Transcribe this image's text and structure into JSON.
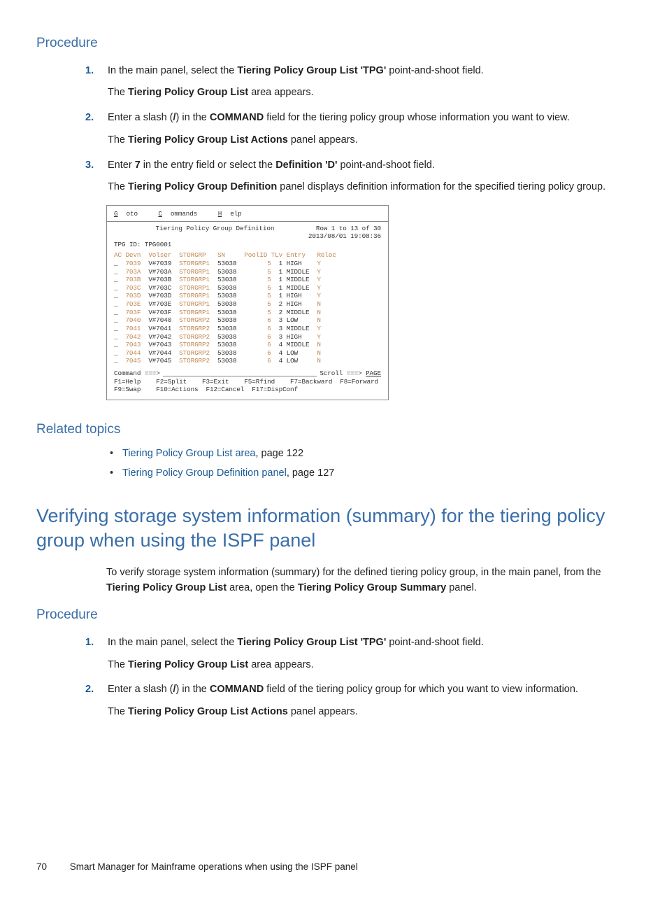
{
  "colors": {
    "heading": "#3a6ea8",
    "link": "#1a5a96",
    "term_accent": "#c08850",
    "border": "#888888",
    "text": "#222222",
    "bg": "#ffffff"
  },
  "typography": {
    "body_family": "Arial",
    "body_size_pt": 11,
    "heading_h1_size_pt": 20,
    "heading_h2_size_pt": 14,
    "mono_family": "Courier New",
    "mono_size_pt": 7
  },
  "proc1_heading": "Procedure",
  "steps1": [
    {
      "num": "1.",
      "line1_a": "In the main panel, select the ",
      "line1_b": "Tiering Policy Group List 'TPG'",
      "line1_c": " point-and-shoot field.",
      "line2_a": "The ",
      "line2_b": "Tiering Policy Group List",
      "line2_c": " area appears."
    },
    {
      "num": "2.",
      "line1_a": "Enter a slash (",
      "line1_b": "/",
      "line1_c": ") in the ",
      "line1_d": "COMMAND",
      "line1_e": " field for the tiering policy group whose information you want to view.",
      "line2_a": "The ",
      "line2_b": "Tiering Policy Group List Actions",
      "line2_c": " panel appears."
    },
    {
      "num": "3.",
      "line1_a": "Enter ",
      "line1_b": "7",
      "line1_c": " in the entry field or select the ",
      "line1_d": "Definition 'D'",
      "line1_e": " point-and-shoot field.",
      "line2_a": "The ",
      "line2_b": "Tiering Policy Group Definition",
      "line2_c": " panel displays definition information for the specified tiering policy group."
    }
  ],
  "terminal": {
    "menu": {
      "m1u": "G",
      "m1": "oto",
      "m2u": "C",
      "m2": "ommands",
      "m3u": "H",
      "m3": "elp"
    },
    "title": "Tiering Policy Group Definition",
    "row_info": "Row 1 to 13 of 30",
    "timestamp": "2013/08/01 19:08:36",
    "tpg_label": "TPG ID:",
    "tpg_id": "TPG0001",
    "headers": [
      "AC",
      "Devn",
      "Volser",
      "STORGRP",
      "SN",
      "PoolID",
      "TLv",
      "Entry",
      "Reloc"
    ],
    "rows": [
      [
        "_",
        "7039",
        "V#7039",
        "STORGRP1",
        "53038",
        "5",
        "1",
        "HIGH",
        "Y"
      ],
      [
        "_",
        "703A",
        "V#703A",
        "STORGRP1",
        "53038",
        "5",
        "1",
        "MIDDLE",
        "Y"
      ],
      [
        "_",
        "703B",
        "V#703B",
        "STORGRP1",
        "53038",
        "5",
        "1",
        "MIDDLE",
        "Y"
      ],
      [
        "_",
        "703C",
        "V#703C",
        "STORGRP1",
        "53038",
        "5",
        "1",
        "MIDDLE",
        "Y"
      ],
      [
        "_",
        "703D",
        "V#703D",
        "STORGRP1",
        "53038",
        "5",
        "1",
        "HIGH",
        "Y"
      ],
      [
        "_",
        "703E",
        "V#703E",
        "STORGRP1",
        "53038",
        "5",
        "2",
        "HIGH",
        "N"
      ],
      [
        "_",
        "703F",
        "V#703F",
        "STORGRP1",
        "53038",
        "5",
        "2",
        "MIDDLE",
        "N"
      ],
      [
        "_",
        "7040",
        "V#7040",
        "STORGRP2",
        "53038",
        "6",
        "3",
        "LOW",
        "N"
      ],
      [
        "_",
        "7041",
        "V#7041",
        "STORGRP2",
        "53038",
        "6",
        "3",
        "MIDDLE",
        "Y"
      ],
      [
        "_",
        "7042",
        "V#7042",
        "STORGRP2",
        "53038",
        "6",
        "3",
        "HIGH",
        "Y"
      ],
      [
        "_",
        "7043",
        "V#7043",
        "STORGRP2",
        "53038",
        "6",
        "4",
        "MIDDLE",
        "N"
      ],
      [
        "_",
        "7044",
        "V#7044",
        "STORGRP2",
        "53038",
        "6",
        "4",
        "LOW",
        "N"
      ],
      [
        "_",
        "7045",
        "V#7045",
        "STORGRP2",
        "53038",
        "6",
        "4",
        "LOW",
        "N"
      ]
    ],
    "cmd_label": "Command ===>",
    "scroll_label": "Scroll ===> ",
    "scroll_val": "PAGE",
    "fkeys_l1": "F1=Help    F2=Split    F3=Exit    F5=Rfind    F7=Backward  F8=Forward",
    "fkeys_l2": "F9=Swap    F10=Actions  F12=Cancel  F17=DispConf"
  },
  "related_heading": "Related topics",
  "related": [
    {
      "link": "Tiering Policy Group List area",
      "tail": ", page 122"
    },
    {
      "link": "Tiering Policy Group Definition panel",
      "tail": ", page 127"
    }
  ],
  "section_heading": "Verifying storage system information (summary) for the tiering policy group when using the ISPF panel",
  "section_intro_a": "To verify storage system information (summary) for the defined tiering policy group, in the main panel, from the ",
  "section_intro_b": "Tiering Policy Group List",
  "section_intro_c": " area, open the ",
  "section_intro_d": "Tiering Policy Group Summary",
  "section_intro_e": " panel.",
  "proc2_heading": "Procedure",
  "steps2": [
    {
      "num": "1.",
      "line1_a": "In the main panel, select the ",
      "line1_b": "Tiering Policy Group List 'TPG'",
      "line1_c": " point-and-shoot field.",
      "line2_a": "The ",
      "line2_b": "Tiering Policy Group List",
      "line2_c": " area appears."
    },
    {
      "num": "2.",
      "line1_a": "Enter a slash (",
      "line1_b": "/",
      "line1_c": ") in the ",
      "line1_d": "COMMAND",
      "line1_e": " field of the tiering policy group for which you want to view information.",
      "line2_a": "The ",
      "line2_b": "Tiering Policy Group List Actions",
      "line2_c": " panel appears."
    }
  ],
  "footer_page": "70",
  "footer_text": "Smart Manager for Mainframe operations when using the ISPF panel"
}
